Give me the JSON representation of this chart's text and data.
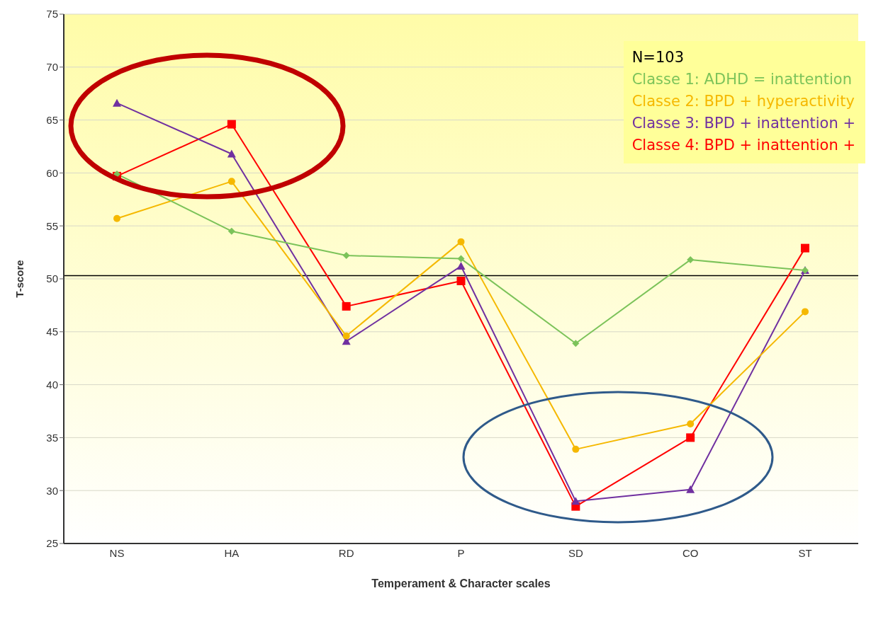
{
  "chart_data": {
    "type": "line",
    "xlabel": "Temperament & Character scales",
    "ylabel": "T-score",
    "categories": [
      "NS",
      "HA",
      "RD",
      "P",
      "SD",
      "CO",
      "ST"
    ],
    "series": [
      {
        "name": "Classe 1: ADHD = inattention",
        "color": "#7cc35a",
        "marker": "diamond",
        "values": [
          59.9,
          54.5,
          52.2,
          51.9,
          43.9,
          51.8,
          50.8
        ]
      },
      {
        "name": "Classe 2: BPD + hyperactivity",
        "color": "#f5b800",
        "marker": "circle",
        "values": [
          55.7,
          59.2,
          44.6,
          53.5,
          33.9,
          36.3,
          46.9
        ]
      },
      {
        "name": "Classe 3: BPD + inattention +",
        "color": "#7030a0",
        "marker": "triangle",
        "values": [
          66.6,
          61.8,
          44.1,
          51.2,
          29.0,
          30.1,
          50.8
        ]
      },
      {
        "name": "Classe 4: BPD + inattention +",
        "color": "#ff0000",
        "marker": "square",
        "values": [
          59.7,
          64.6,
          47.4,
          49.8,
          28.5,
          35.0,
          52.9
        ]
      }
    ],
    "annotations": [
      "N=103"
    ],
    "ylim": [
      25,
      75
    ],
    "yticks": [
      25,
      30,
      35,
      40,
      45,
      50,
      55,
      60,
      65,
      70,
      75
    ],
    "grid": "y",
    "legend": "top right",
    "ref_lines": [
      {
        "axis": "y",
        "value": 50.3,
        "color": "#000000"
      }
    ]
  }
}
